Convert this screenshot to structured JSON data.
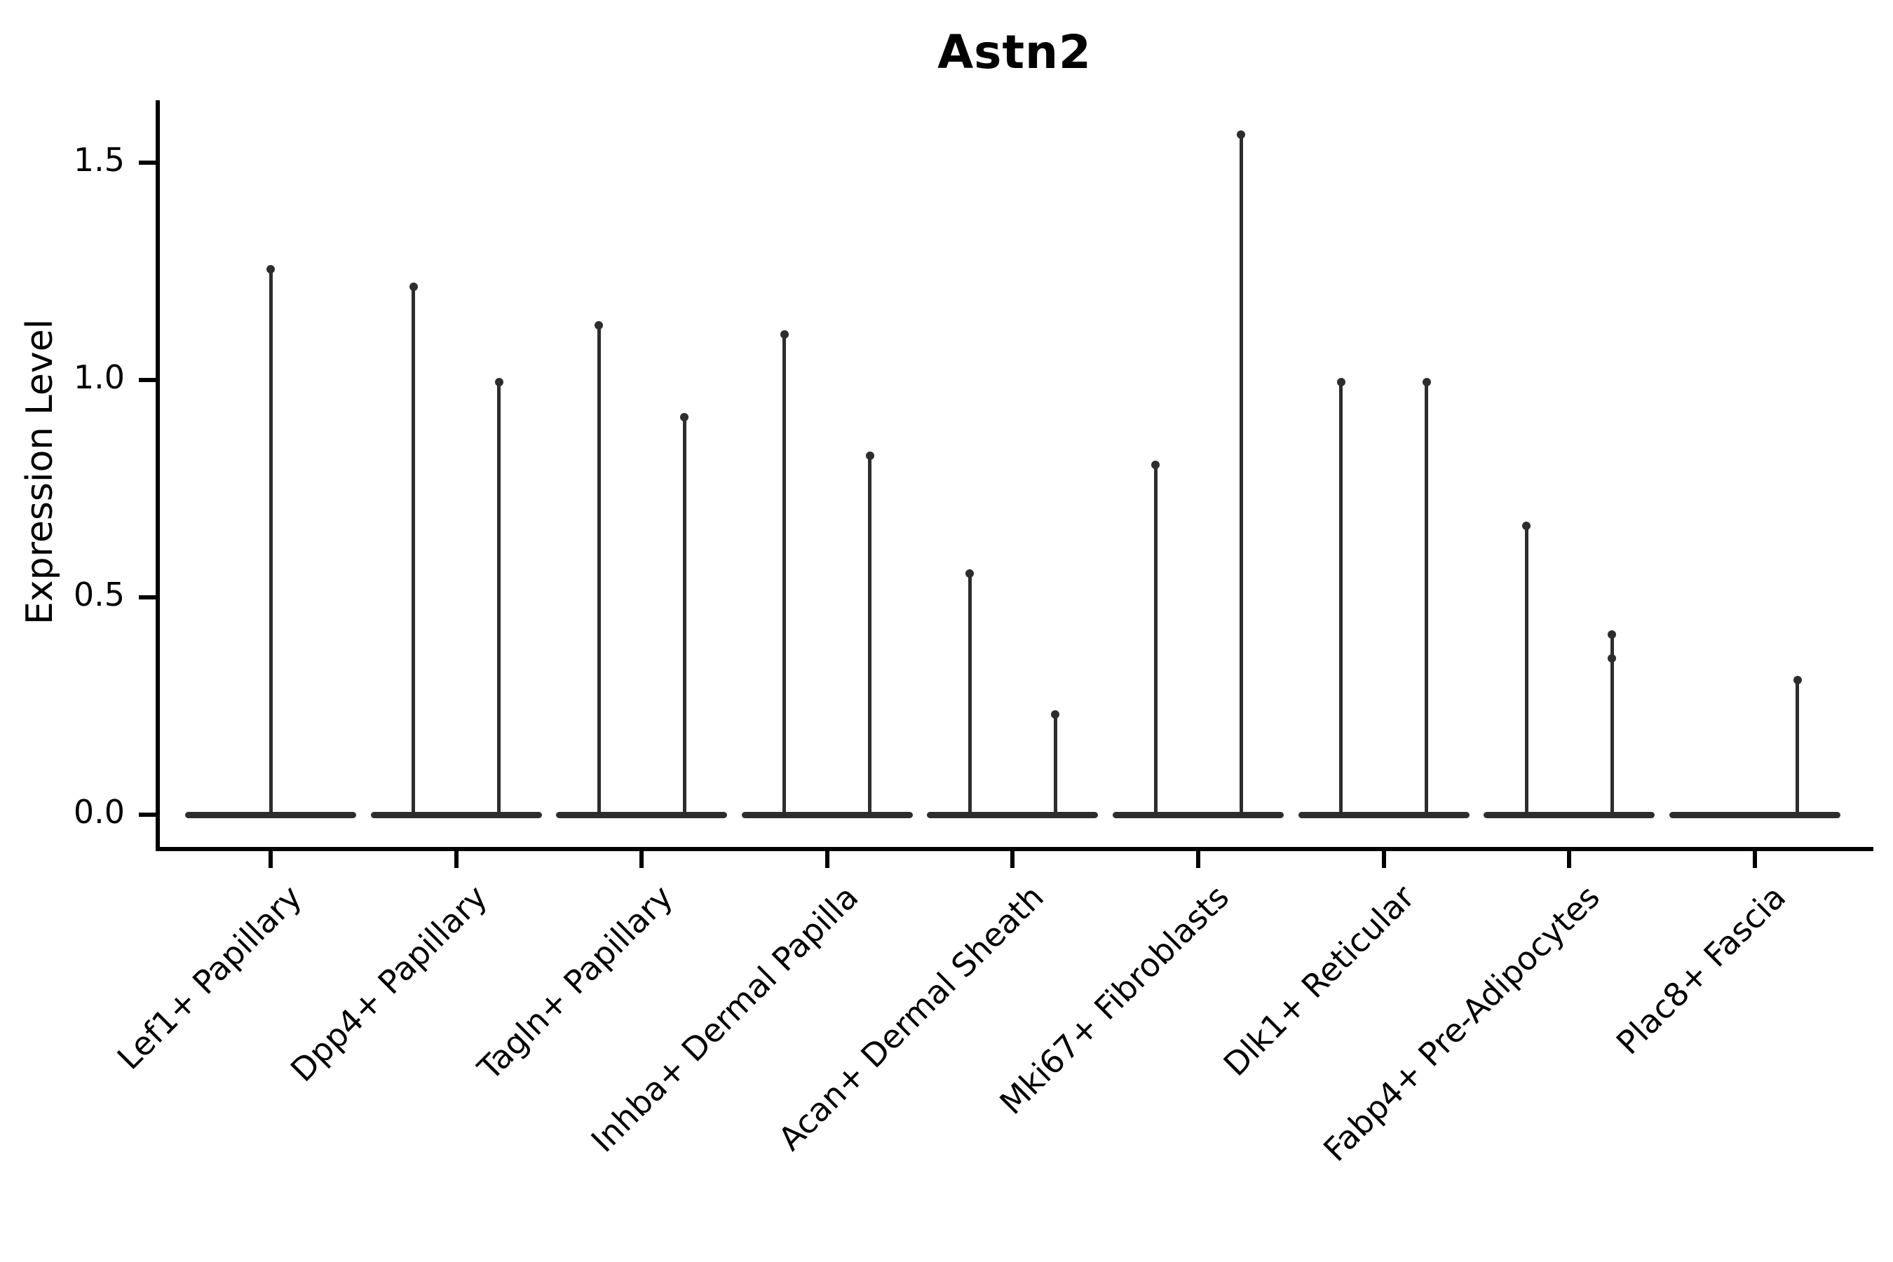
{
  "chart_data": {
    "type": "violin",
    "title": "Astn2",
    "ylabel": "Expression Level",
    "xlabel": "",
    "yticks": [
      "0.0",
      "0.5",
      "1.0",
      "1.5"
    ],
    "ytick_values": [
      0.0,
      0.5,
      1.0,
      1.5
    ],
    "ylim": [
      -0.08,
      1.64
    ],
    "grid": false,
    "legend": "none",
    "violin_color": "#2d2d2d",
    "axis_color": "#000000",
    "description": "Violin plot of Astn2 expression; each cell-type category shows a flat zero-expression base with thin density spikes rising to the maximum expression of up to two dodged sub-violins.",
    "categories": [
      {
        "label": "Lef1+ Papillary",
        "violins": [
          {
            "position": "center",
            "max": 1.26
          }
        ]
      },
      {
        "label": "Dpp4+ Papillary",
        "violins": [
          {
            "position": "left",
            "max": 1.22
          },
          {
            "position": "right",
            "max": 1.0
          }
        ]
      },
      {
        "label": "Tagln+ Papillary",
        "violins": [
          {
            "position": "left",
            "max": 1.13
          },
          {
            "position": "right",
            "max": 0.92
          }
        ]
      },
      {
        "label": "Inhba+ Dermal Papilla",
        "violins": [
          {
            "position": "left",
            "max": 1.11
          },
          {
            "position": "right",
            "max": 0.83
          }
        ]
      },
      {
        "label": "Acan+ Dermal Sheath",
        "violins": [
          {
            "position": "left",
            "max": 0.56
          },
          {
            "position": "right",
            "max": 0.235
          }
        ]
      },
      {
        "label": "Mki67+ Fibroblasts",
        "violins": [
          {
            "position": "left",
            "max": 0.81
          },
          {
            "position": "right",
            "max": 1.57
          }
        ]
      },
      {
        "label": "Dlk1+ Reticular",
        "violins": [
          {
            "position": "left",
            "max": 1.0
          },
          {
            "position": "right",
            "max": 1.0
          }
        ]
      },
      {
        "label": "Fabp4+ Pre-Adipocytes",
        "violins": [
          {
            "position": "left",
            "max": 0.67
          },
          {
            "position": "right",
            "max": 0.42,
            "knobs": [
              0.36
            ]
          }
        ]
      },
      {
        "label": "Plac8+ Fascia",
        "violins": [
          {
            "position": "right",
            "max": 0.315
          }
        ]
      }
    ]
  }
}
